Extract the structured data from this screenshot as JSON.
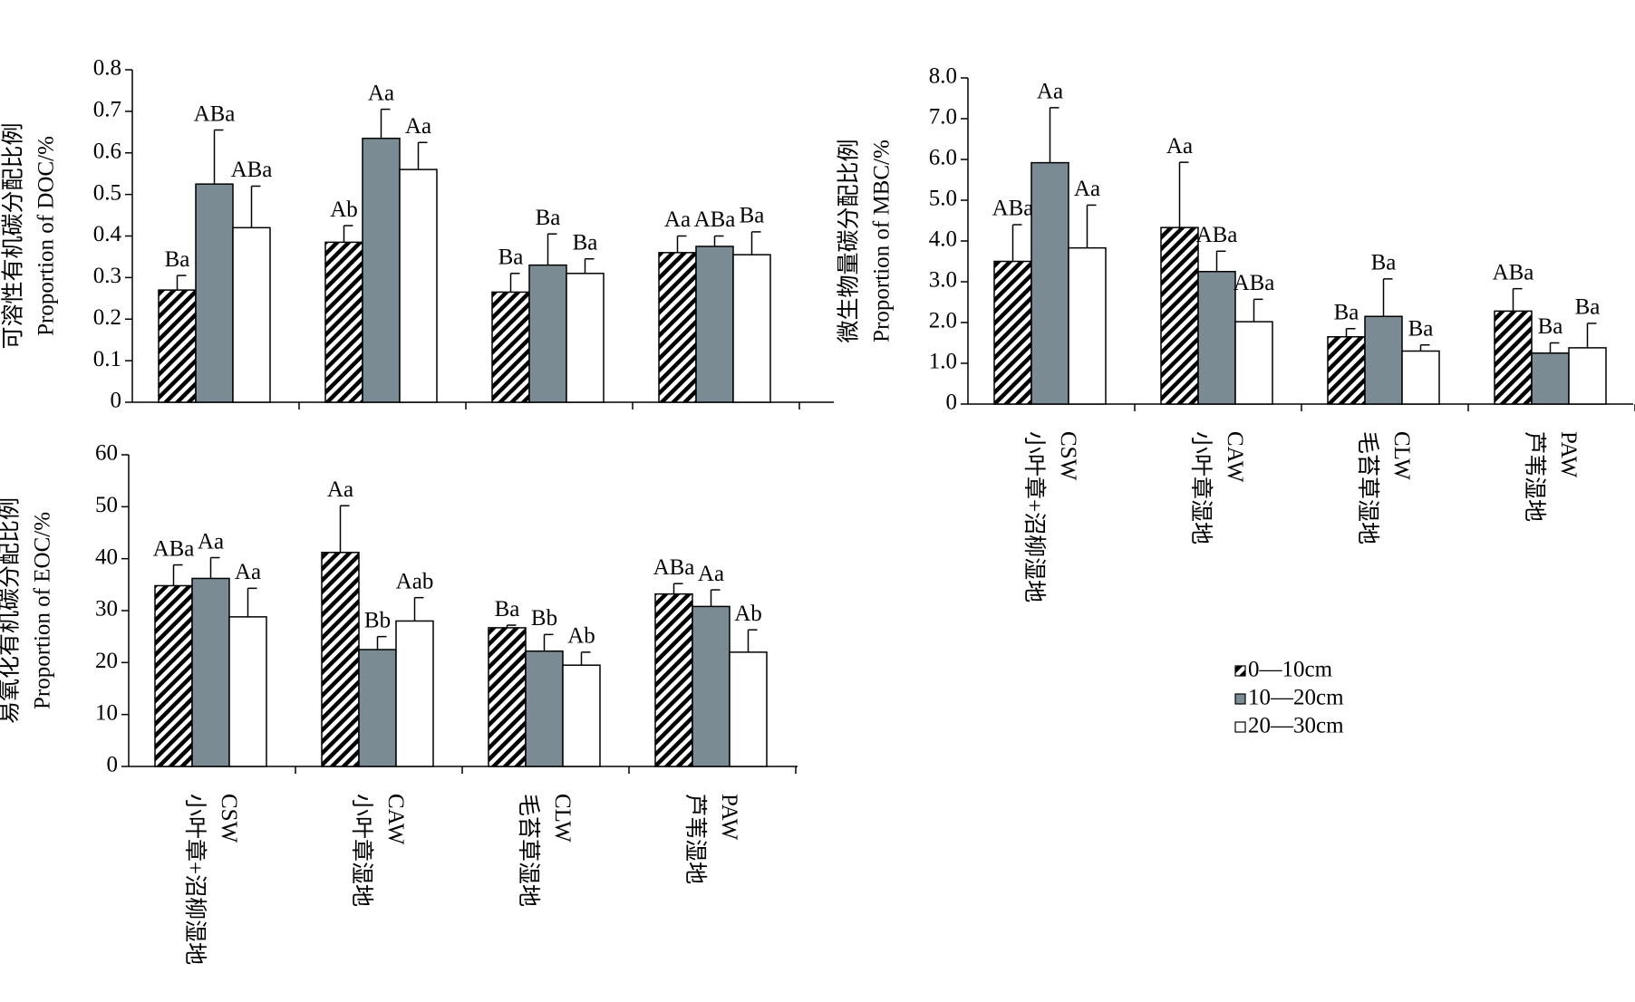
{
  "chart_data": [
    {
      "type": "bar",
      "ylabel": [
        "可溶性有机碳分配比例",
        "Proportion of DOC/%"
      ],
      "ylim": [
        0,
        0.8
      ],
      "yticks": [
        0,
        0.1,
        0.2,
        0.3,
        0.4,
        0.5,
        0.6,
        0.7,
        0.8
      ],
      "series": [
        {
          "color": "#000000",
          "pattern": "diagonal",
          "values": [
            0.27,
            0.385,
            0.265,
            0.36
          ],
          "errors": [
            0.035,
            0.04,
            0.045,
            0.04
          ],
          "letters": [
            "Ba",
            "Ab",
            "Ba",
            "Aa"
          ]
        },
        {
          "color": "#7b8b93",
          "values": [
            0.525,
            0.635,
            0.33,
            0.375
          ],
          "errors": [
            0.13,
            0.07,
            0.075,
            0.025
          ],
          "letters": [
            "ABa",
            "Aa",
            "Ba",
            "ABa"
          ]
        },
        {
          "color": "#ffffff",
          "values": [
            0.42,
            0.56,
            0.31,
            0.355
          ],
          "errors": [
            0.1,
            0.065,
            0.035,
            0.055
          ],
          "letters": [
            "ABa",
            "Aa",
            "Ba",
            "Ba"
          ]
        }
      ]
    },
    {
      "type": "bar",
      "ylabel": [
        "微生物量碳分配比例",
        "Proportion of MBC/%"
      ],
      "categories": [
        "小叶章+沼柳湿地",
        "小叶章湿地",
        "毛苔草湿地",
        "芦苇湿地"
      ],
      "category_codes": [
        "CSW",
        "CAW",
        "CLW",
        "PAW"
      ],
      "ylim": [
        0,
        8
      ],
      "yticks": [
        0,
        {
          "value": 1,
          "label": "1.0"
        },
        {
          "value": 2,
          "label": "2.0"
        },
        {
          "value": 3,
          "label": "3.0"
        },
        {
          "value": 4,
          "label": "4.0"
        },
        {
          "value": 5,
          "label": "5.0"
        },
        {
          "value": 6,
          "label": "6.0"
        },
        {
          "value": 7,
          "label": "7.0"
        },
        {
          "value": 8,
          "label": "8.0"
        }
      ],
      "legend": "bottom-right",
      "series": [
        {
          "name": "0—10cm",
          "color": "#000000",
          "pattern": "diagonal",
          "values": [
            3.5,
            4.33,
            1.65,
            2.28
          ],
          "errors": [
            0.9,
            1.6,
            0.2,
            0.55
          ],
          "letters": [
            "ABa",
            "Aa",
            "Ba",
            "ABa"
          ]
        },
        {
          "name": "10—20cm",
          "color": "#7b8b93",
          "values": [
            5.92,
            3.25,
            2.15,
            1.25
          ],
          "errors": [
            1.35,
            0.5,
            0.92,
            0.25
          ],
          "letters": [
            "Aa",
            "ABa",
            "Ba",
            "Ba"
          ]
        },
        {
          "name": "20—30cm",
          "color": "#ffffff",
          "values": [
            3.83,
            2.02,
            1.3,
            1.38
          ],
          "errors": [
            1.05,
            0.55,
            0.15,
            0.6
          ],
          "letters": [
            "Aa",
            "ABa",
            "Ba",
            "Ba"
          ]
        }
      ]
    },
    {
      "type": "bar",
      "ylabel": [
        "易氧化有机碳分配比例",
        "Proportion of EOC/%"
      ],
      "categories": [
        "小叶章+沼柳湿地",
        "小叶章湿地",
        "毛苔草湿地",
        "芦苇湿地"
      ],
      "category_codes": [
        "CSW",
        "CAW",
        "CLW",
        "PAW"
      ],
      "ylim": [
        0,
        60
      ],
      "yticks": [
        0,
        10,
        20,
        30,
        40,
        50,
        60
      ],
      "series": [
        {
          "color": "#000000",
          "pattern": "diagonal",
          "values": [
            34.8,
            41.2,
            26.7,
            33.2
          ],
          "errors": [
            4,
            9,
            0.5,
            2
          ],
          "letters": [
            "ABa",
            "Aa",
            "Ba",
            "ABa"
          ]
        },
        {
          "color": "#7b8b93",
          "values": [
            36.2,
            22.5,
            22.2,
            30.8
          ],
          "errors": [
            4,
            2.5,
            3.2,
            3.2
          ],
          "letters": [
            "Aa",
            "Bb",
            "Bb",
            "Aa"
          ]
        },
        {
          "color": "#ffffff",
          "values": [
            28.8,
            28,
            19.5,
            22
          ],
          "errors": [
            5.5,
            4.5,
            2.5,
            4.3
          ],
          "letters": [
            "Aa",
            "Aab",
            "Ab",
            "Ab"
          ]
        }
      ]
    }
  ]
}
